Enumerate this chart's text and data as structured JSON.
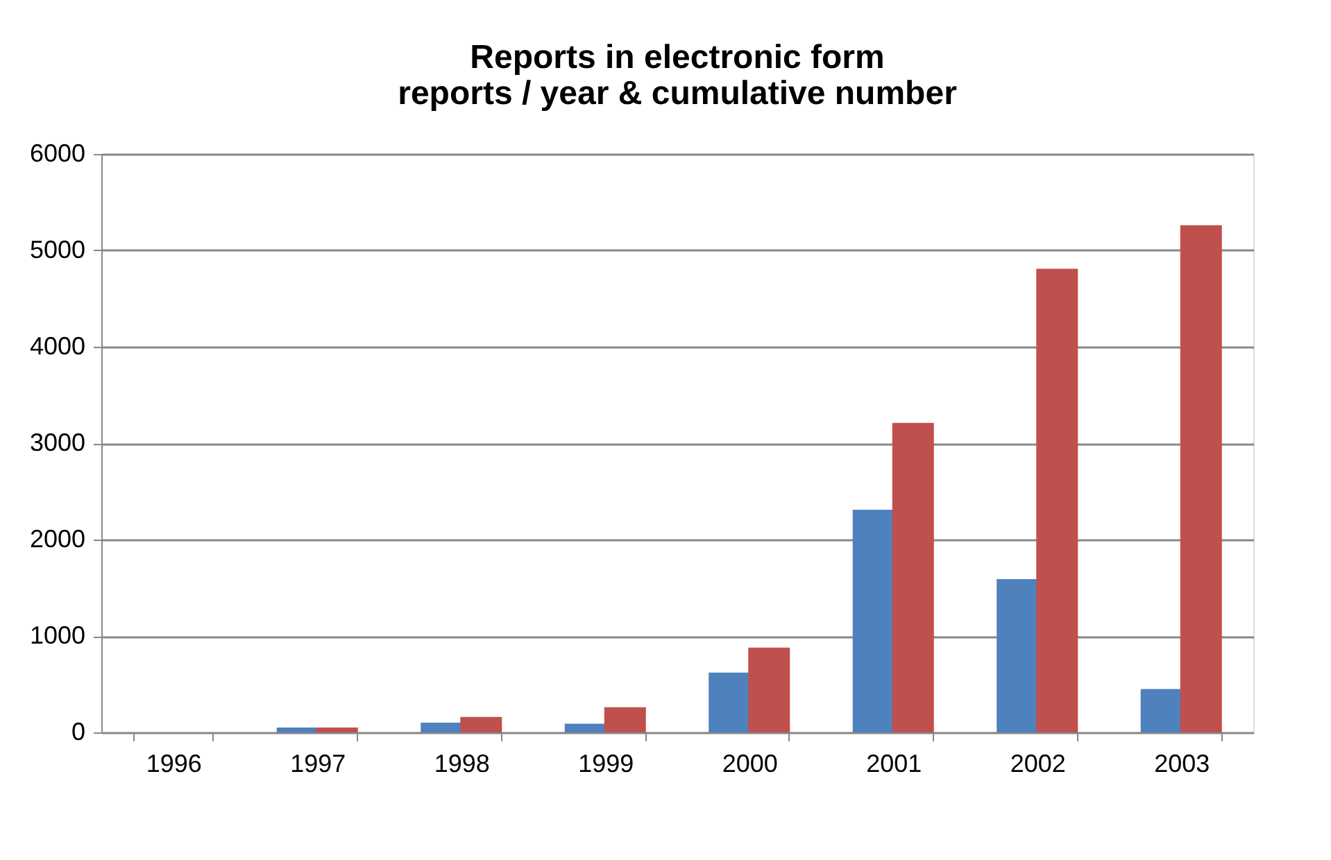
{
  "chart_data": {
    "type": "bar",
    "title": "Reports in electronic form\nreports / year & cumulative number",
    "categories": [
      "1996",
      "1997",
      "1998",
      "1999",
      "2000",
      "2001",
      "2002",
      "2003"
    ],
    "series": [
      {
        "color": "#4f81bd",
        "values": [
          0,
          50,
          100,
          90,
          620,
          2310,
          1590,
          450
        ]
      },
      {
        "color": "#c0504d",
        "values": [
          0,
          50,
          160,
          260,
          880,
          3210,
          4810,
          5260
        ]
      }
    ],
    "ylim": [
      0,
      6000
    ],
    "yticks": [
      0,
      1000,
      2000,
      3000,
      4000,
      5000,
      6000
    ],
    "grid": "y",
    "legend": false
  }
}
